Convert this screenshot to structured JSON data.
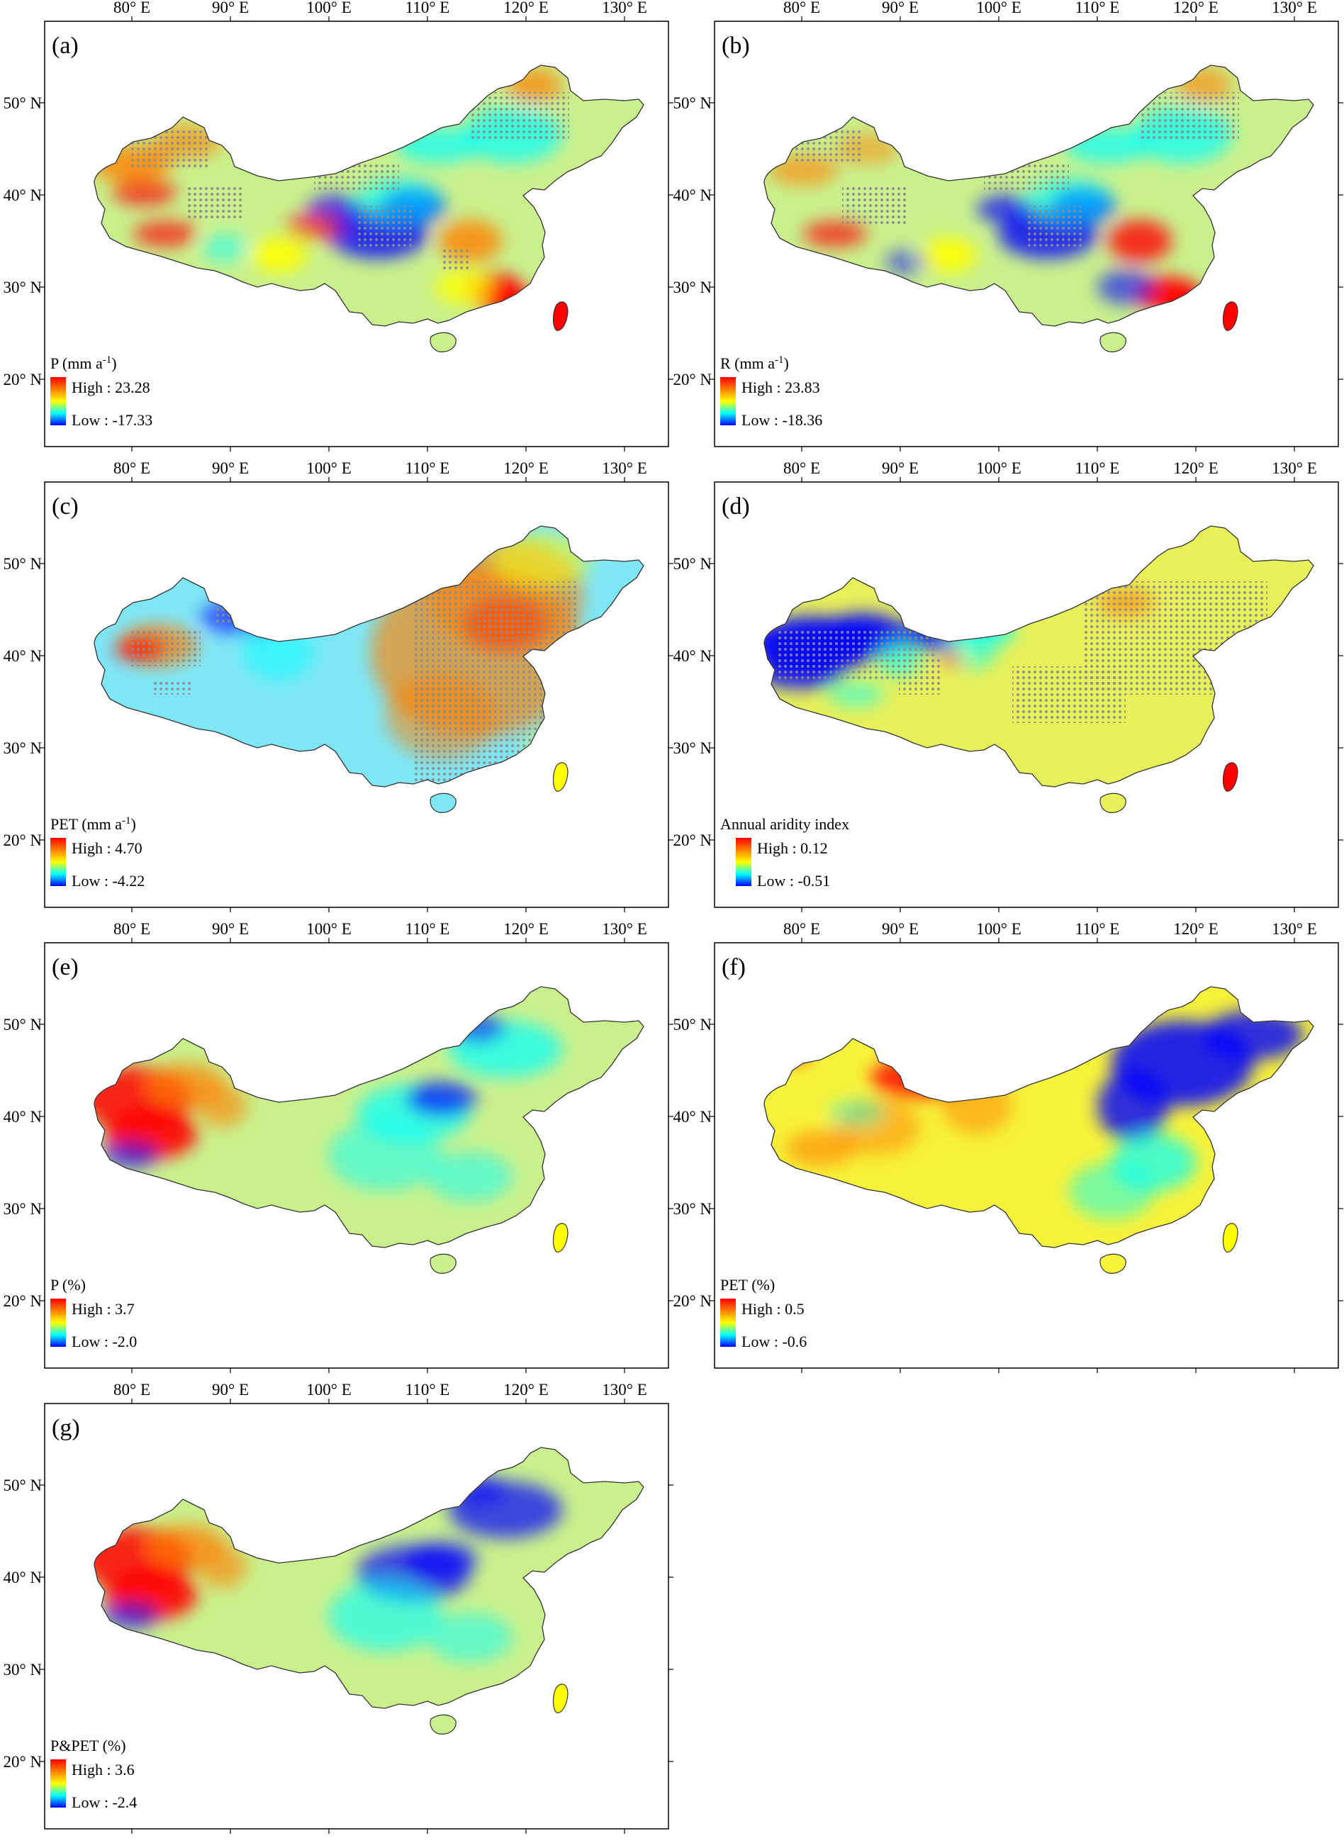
{
  "lon_ticks": [
    "80° E",
    "90° E",
    "100° E",
    "110° E",
    "120° E",
    "130° E"
  ],
  "lat_ticks": [
    "50° N",
    "40° N",
    "30° N",
    "20° N"
  ],
  "high_label": "High",
  "low_label": "Low",
  "legend_colors": [
    "#ff0000",
    "#ff7f00",
    "#ffff00",
    "#00ffff",
    "#0000ff"
  ],
  "panels": [
    {
      "letter": "(a)",
      "legend_title": "P (mm a",
      "legend_superscript": "-1",
      "legend_close": ")",
      "high": "23.28",
      "low": "-17.33",
      "stippled": true
    },
    {
      "letter": "(b)",
      "legend_title": "R (mm a",
      "legend_superscript": "-1",
      "legend_close": ")",
      "high": "23.83",
      "low": "-18.36",
      "stippled": true
    },
    {
      "letter": "(c)",
      "legend_title": "PET (mm a",
      "legend_superscript": "-1",
      "legend_close": ")",
      "high": "4.70",
      "low": "-4.22",
      "stippled": true
    },
    {
      "letter": "(d)",
      "legend_title": "Annual aridity index",
      "legend_superscript": "",
      "legend_close": "",
      "high": "0.12",
      "low": "-0.51",
      "stippled": true
    },
    {
      "letter": "(e)",
      "legend_title": "P (%)",
      "legend_superscript": "",
      "legend_close": "",
      "high": "3.7",
      "low": "-2.0",
      "stippled": false
    },
    {
      "letter": "(f)",
      "legend_title": "PET (%)",
      "legend_superscript": "",
      "legend_close": "",
      "high": "0.5",
      "low": "-0.6",
      "stippled": false
    },
    {
      "letter": "(g)",
      "legend_title": "P&PET (%)",
      "legend_superscript": "",
      "legend_close": "",
      "high": "3.6",
      "low": "-2.4",
      "stippled": false
    }
  ]
}
